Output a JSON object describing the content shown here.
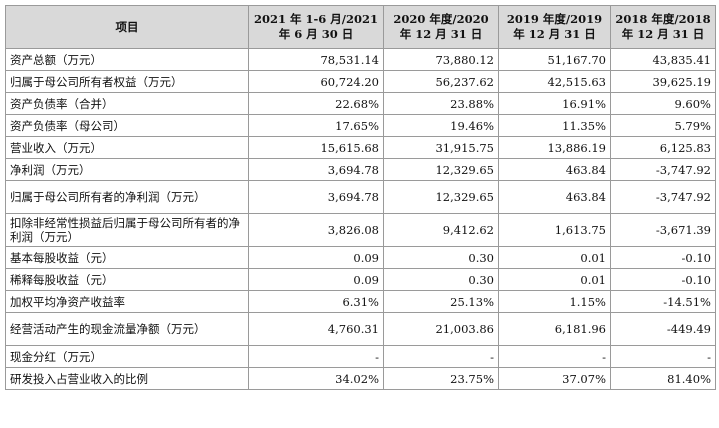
{
  "table": {
    "header": {
      "item": "项目",
      "columns": [
        {
          "line1": "2021 年 1-6 月/2021",
          "line2": "年 6 月 30 日"
        },
        {
          "line1": "2020 年度/2020",
          "line2": "年 12 月 31 日"
        },
        {
          "line1": "2019 年度/2019",
          "line2": "年 12 月 31 日"
        },
        {
          "line1": "2018 年度/2018",
          "line2": "年 12 月 31 日"
        }
      ]
    },
    "rows": [
      {
        "label": "资产总额（万元）",
        "values": [
          "78,531.14",
          "73,880.12",
          "51,167.70",
          "43,835.41"
        ]
      },
      {
        "label": "归属于母公司所有者权益（万元）",
        "values": [
          "60,724.20",
          "56,237.62",
          "42,515.63",
          "39,625.19"
        ]
      },
      {
        "label": "资产负债率（合并）",
        "values": [
          "22.68%",
          "23.88%",
          "16.91%",
          "9.60%"
        ]
      },
      {
        "label": "资产负债率（母公司）",
        "values": [
          "17.65%",
          "19.46%",
          "11.35%",
          "5.79%"
        ]
      },
      {
        "label": "营业收入（万元）",
        "values": [
          "15,615.68",
          "31,915.75",
          "13,886.19",
          "6,125.83"
        ]
      },
      {
        "label": "净利润（万元）",
        "values": [
          "3,694.78",
          "12,329.65",
          "463.84",
          "-3,747.92"
        ]
      },
      {
        "label": "归属于母公司所有者的净利润（万元）",
        "values": [
          "3,694.78",
          "12,329.65",
          "463.84",
          "-3,747.92"
        ]
      },
      {
        "label": "扣除非经常性损益后归属于母公司所有者的净利润（万元）",
        "values": [
          "3,826.08",
          "9,412.62",
          "1,613.75",
          "-3,671.39"
        ]
      },
      {
        "label": "基本每股收益（元）",
        "values": [
          "0.09",
          "0.30",
          "0.01",
          "-0.10"
        ]
      },
      {
        "label": "稀释每股收益（元）",
        "values": [
          "0.09",
          "0.30",
          "0.01",
          "-0.10"
        ]
      },
      {
        "label": "加权平均净资产收益率",
        "values": [
          "6.31%",
          "25.13%",
          "1.15%",
          "-14.51%"
        ]
      },
      {
        "label": "经营活动产生的现金流量净额（万元）",
        "values": [
          "4,760.31",
          "21,003.86",
          "6,181.96",
          "-449.49"
        ]
      },
      {
        "label": "现金分红（万元）",
        "values": [
          "-",
          "-",
          "-",
          "-"
        ]
      },
      {
        "label": "研发投入占营业收入的比例",
        "values": [
          "34.02%",
          "23.75%",
          "37.07%",
          "81.40%"
        ]
      }
    ]
  }
}
